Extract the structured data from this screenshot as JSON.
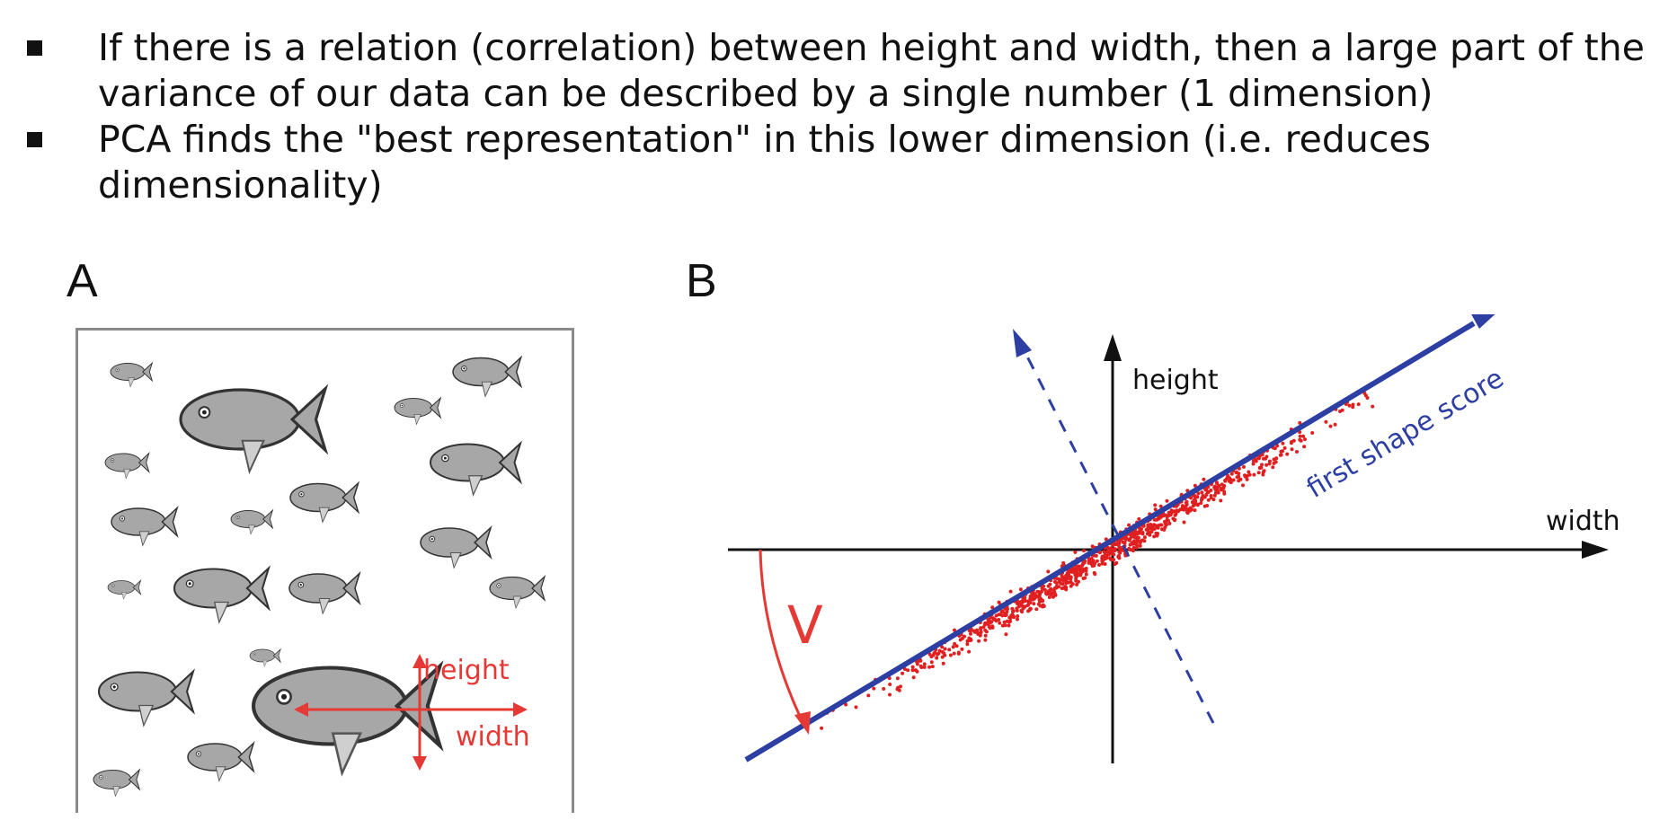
{
  "bullets": [
    {
      "text": "If there is a relation (correlation) between height and width, then a large part of the variance of our data can be described by a single number (1 dimension)"
    },
    {
      "text": "PCA finds the \"best representation\"  in this lower dimension (i.e. reduces dimensionality)"
    }
  ],
  "figure": {
    "panel_a": {
      "label": "A",
      "height_label": "height",
      "width_label": "width"
    },
    "panel_b": {
      "label": "B",
      "axis_y_label": "height",
      "axis_x_label": "width",
      "pc1_label": "first shape score",
      "angle_label": "V"
    }
  },
  "colors": {
    "fish_fill": "#a7a7a7",
    "fish_stroke": "#333333",
    "annotation_red": "#e53935",
    "pc_blue": "#2e3fa3",
    "scatter_red": "#e02020"
  }
}
